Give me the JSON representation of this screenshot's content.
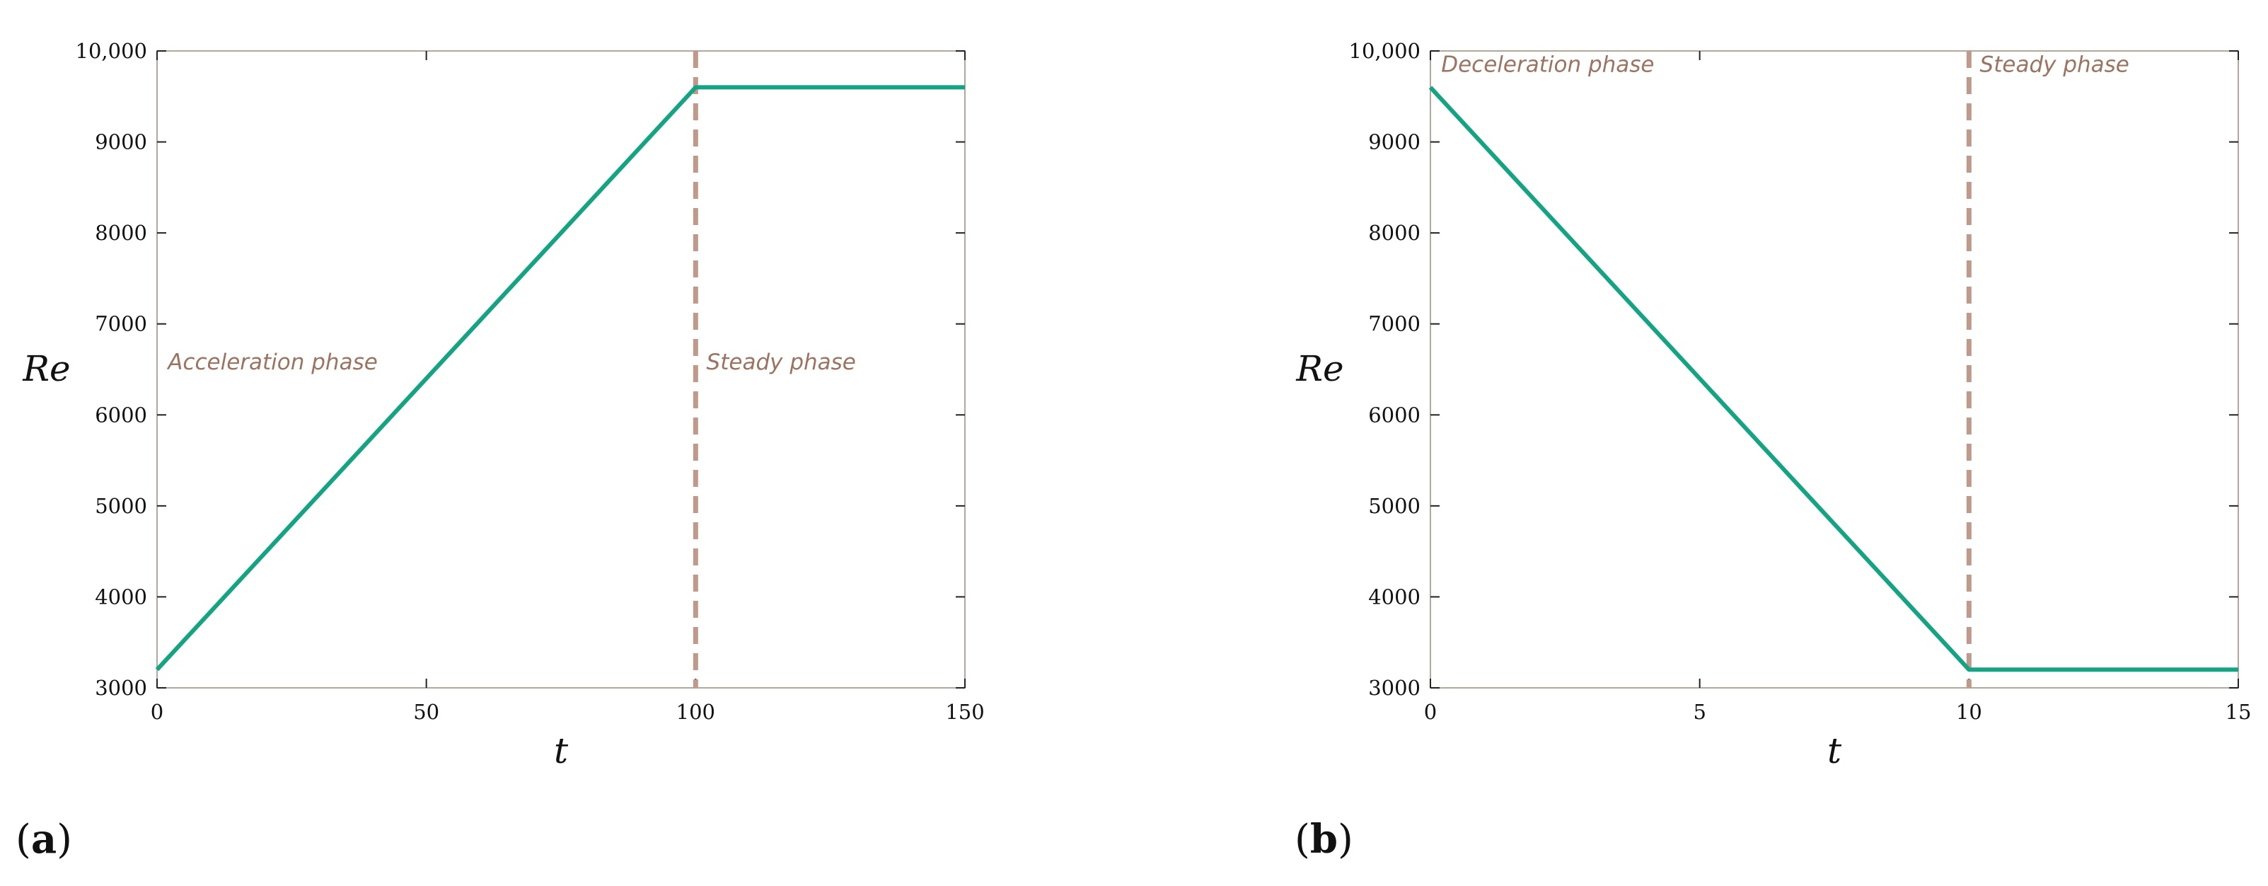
{
  "colors": {
    "series": "#14a383",
    "divider": "#bf9a8a",
    "annotation": "#9b7360",
    "frame": "#b5a89a",
    "tick": "#222222"
  },
  "chart_data": [
    {
      "type": "line",
      "panel_label": "a",
      "xlabel": "t",
      "ylabel": "Re",
      "xlim": [
        0,
        150
      ],
      "ylim": [
        3000,
        10000
      ],
      "x_ticks": [
        0,
        50,
        100,
        150
      ],
      "x_tick_labels": [
        "0",
        "50",
        "100",
        "150"
      ],
      "y_ticks": [
        3000,
        4000,
        5000,
        6000,
        7000,
        8000,
        9000,
        10000
      ],
      "y_tick_labels": [
        "3000",
        "4000",
        "5000",
        "6000",
        "7000",
        "8000",
        "9000",
        "10,000"
      ],
      "grid": false,
      "series": [
        {
          "x": [
            0,
            100,
            150
          ],
          "y": [
            3200,
            9600,
            9600
          ]
        }
      ],
      "vlines": [
        100
      ],
      "annotations": [
        {
          "text": "Acceleration phase",
          "x": 2,
          "y": 6500
        },
        {
          "text": "Steady phase",
          "x": 102,
          "y": 6500
        }
      ]
    },
    {
      "type": "line",
      "panel_label": "b",
      "xlabel": "t",
      "ylabel": "Re",
      "xlim": [
        0,
        15
      ],
      "ylim": [
        3000,
        10000
      ],
      "x_ticks": [
        0,
        5,
        10,
        15
      ],
      "x_tick_labels": [
        "0",
        "5",
        "10",
        "15"
      ],
      "y_ticks": [
        3000,
        4000,
        5000,
        6000,
        7000,
        8000,
        9000,
        10000
      ],
      "y_tick_labels": [
        "3000",
        "4000",
        "5000",
        "6000",
        "7000",
        "8000",
        "9000",
        "10,000"
      ],
      "grid": false,
      "series": [
        {
          "x": [
            0,
            10,
            15
          ],
          "y": [
            9600,
            3200,
            3200
          ]
        }
      ],
      "vlines": [
        10
      ],
      "annotations": [
        {
          "text": "Deceleration phase",
          "x": 0.2,
          "y": 9770
        },
        {
          "text": "Steady phase",
          "x": 10.2,
          "y": 9770
        }
      ]
    }
  ]
}
